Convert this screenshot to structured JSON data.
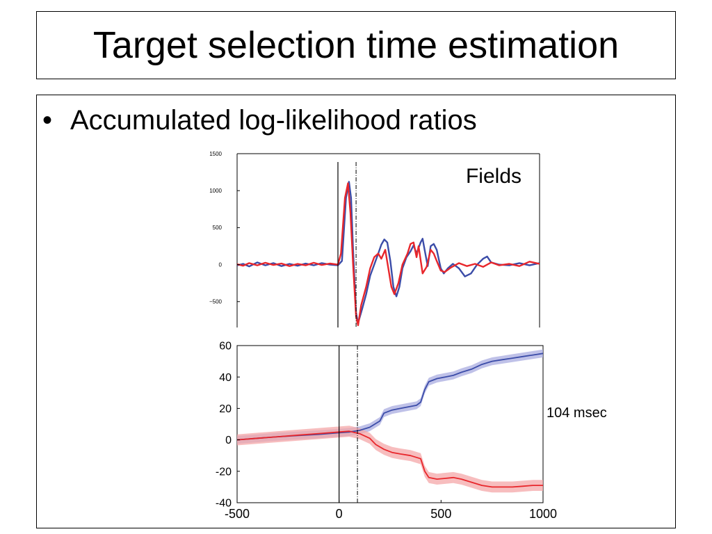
{
  "slide": {
    "title": "Target selection time estimation",
    "bullet": "Accumulated log-likelihood ratios",
    "annotation": "104 msec"
  },
  "colors": {
    "series_blue": "#3b4ca8",
    "series_red": "#e8262b",
    "band_blue": "#a9ace0",
    "band_red": "#f4a7a8"
  },
  "chart_data": [
    {
      "type": "line",
      "title": "Fields",
      "xlabel": "",
      "ylabel": "",
      "xlim": [
        -500,
        1000
      ],
      "ylim": [
        -850,
        1500
      ],
      "yticks": [
        1500,
        1000,
        500,
        0,
        -500
      ],
      "ytick_labels": [
        "1500",
        "1000",
        "500",
        "0",
        "−500"
      ],
      "vlines": [
        {
          "x": 0,
          "style": "solid"
        },
        {
          "x": 90,
          "style": "dashdot"
        }
      ],
      "series": [
        {
          "color": "#3b4ca8",
          "points": [
            [
              -500,
              -10
            ],
            [
              -470,
              10
            ],
            [
              -440,
              -25
            ],
            [
              -400,
              30
            ],
            [
              -360,
              -10
            ],
            [
              -320,
              20
            ],
            [
              -280,
              -20
            ],
            [
              -240,
              10
            ],
            [
              -200,
              -15
            ],
            [
              -160,
              15
            ],
            [
              -120,
              -10
            ],
            [
              -80,
              20
            ],
            [
              -40,
              0
            ],
            [
              0,
              -10
            ],
            [
              20,
              50
            ],
            [
              40,
              900
            ],
            [
              55,
              1120
            ],
            [
              65,
              900
            ],
            [
              75,
              200
            ],
            [
              90,
              -650
            ],
            [
              100,
              -790
            ],
            [
              120,
              -600
            ],
            [
              140,
              -400
            ],
            [
              160,
              -150
            ],
            [
              180,
              0
            ],
            [
              200,
              150
            ],
            [
              215,
              270
            ],
            [
              230,
              340
            ],
            [
              245,
              300
            ],
            [
              260,
              50
            ],
            [
              275,
              -300
            ],
            [
              290,
              -430
            ],
            [
              305,
              -300
            ],
            [
              320,
              -50
            ],
            [
              340,
              100
            ],
            [
              360,
              180
            ],
            [
              375,
              260
            ],
            [
              390,
              150
            ],
            [
              410,
              300
            ],
            [
              420,
              350
            ],
            [
              430,
              200
            ],
            [
              445,
              -20
            ],
            [
              460,
              250
            ],
            [
              475,
              280
            ],
            [
              490,
              200
            ],
            [
              510,
              -50
            ],
            [
              525,
              -120
            ],
            [
              545,
              -50
            ],
            [
              570,
              10
            ],
            [
              600,
              -50
            ],
            [
              630,
              -160
            ],
            [
              660,
              -120
            ],
            [
              690,
              0
            ],
            [
              720,
              80
            ],
            [
              740,
              110
            ],
            [
              760,
              30
            ],
            [
              800,
              0
            ],
            [
              850,
              -10
            ],
            [
              900,
              20
            ],
            [
              950,
              -10
            ],
            [
              1000,
              20
            ]
          ]
        },
        {
          "color": "#e8262b",
          "points": [
            [
              -500,
              5
            ],
            [
              -470,
              -15
            ],
            [
              -440,
              20
            ],
            [
              -400,
              -10
            ],
            [
              -360,
              25
            ],
            [
              -320,
              -5
            ],
            [
              -280,
              15
            ],
            [
              -240,
              -20
            ],
            [
              -200,
              10
            ],
            [
              -160,
              -10
            ],
            [
              -120,
              25
            ],
            [
              -80,
              -5
            ],
            [
              -40,
              15
            ],
            [
              0,
              0
            ],
            [
              15,
              150
            ],
            [
              35,
              900
            ],
            [
              50,
              1100
            ],
            [
              62,
              700
            ],
            [
              75,
              0
            ],
            [
              90,
              -700
            ],
            [
              100,
              -820
            ],
            [
              115,
              -550
            ],
            [
              140,
              -300
            ],
            [
              160,
              -50
            ],
            [
              180,
              100
            ],
            [
              200,
              150
            ],
            [
              215,
              80
            ],
            [
              235,
              200
            ],
            [
              250,
              -50
            ],
            [
              265,
              -300
            ],
            [
              280,
              -400
            ],
            [
              300,
              -250
            ],
            [
              320,
              0
            ],
            [
              345,
              150
            ],
            [
              360,
              280
            ],
            [
              375,
              300
            ],
            [
              390,
              100
            ],
            [
              400,
              250
            ],
            [
              420,
              -120
            ],
            [
              440,
              -30
            ],
            [
              460,
              200
            ],
            [
              475,
              150
            ],
            [
              490,
              50
            ],
            [
              510,
              -80
            ],
            [
              530,
              -100
            ],
            [
              560,
              -40
            ],
            [
              600,
              20
            ],
            [
              640,
              -20
            ],
            [
              680,
              10
            ],
            [
              720,
              -30
            ],
            [
              760,
              30
            ],
            [
              800,
              -10
            ],
            [
              850,
              10
            ],
            [
              900,
              -20
            ],
            [
              950,
              40
            ],
            [
              1000,
              10
            ]
          ]
        }
      ]
    },
    {
      "type": "line",
      "title": "",
      "xlabel": "",
      "ylabel": "",
      "xlim": [
        -500,
        1000
      ],
      "ylim": [
        -40,
        60
      ],
      "xticks": [
        -500,
        0,
        500,
        1000
      ],
      "xtick_labels": [
        "-500",
        "0",
        "500",
        "1000"
      ],
      "yticks": [
        60,
        40,
        20,
        0,
        -20,
        -40
      ],
      "ytick_labels": [
        "60",
        "40",
        "20",
        "0",
        "-20",
        "-40"
      ],
      "vlines": [
        {
          "x": 0,
          "style": "solid"
        },
        {
          "x": 90,
          "style": "dashdot"
        }
      ],
      "series": [
        {
          "color": "#3b4ca8",
          "band": 2.5,
          "points": [
            [
              -500,
              0
            ],
            [
              -400,
              1
            ],
            [
              -300,
              2
            ],
            [
              -200,
              2.8
            ],
            [
              -100,
              3.5
            ],
            [
              0,
              4.5
            ],
            [
              50,
              5
            ],
            [
              100,
              6
            ],
            [
              150,
              8
            ],
            [
              200,
              12
            ],
            [
              220,
              17
            ],
            [
              260,
              19
            ],
            [
              300,
              20
            ],
            [
              340,
              21
            ],
            [
              380,
              22
            ],
            [
              400,
              24
            ],
            [
              420,
              32
            ],
            [
              440,
              37
            ],
            [
              480,
              39
            ],
            [
              520,
              40
            ],
            [
              560,
              41
            ],
            [
              600,
              43
            ],
            [
              650,
              45
            ],
            [
              700,
              48
            ],
            [
              750,
              50
            ],
            [
              800,
              51
            ],
            [
              850,
              52
            ],
            [
              900,
              53
            ],
            [
              950,
              54
            ],
            [
              1000,
              55
            ]
          ]
        },
        {
          "color": "#e8262b",
          "band": 3.5,
          "points": [
            [
              -500,
              0
            ],
            [
              -400,
              1
            ],
            [
              -300,
              2
            ],
            [
              -200,
              3
            ],
            [
              -100,
              4
            ],
            [
              0,
              5
            ],
            [
              50,
              5.5
            ],
            [
              100,
              4
            ],
            [
              150,
              1
            ],
            [
              180,
              -3
            ],
            [
              220,
              -6
            ],
            [
              260,
              -8
            ],
            [
              300,
              -9
            ],
            [
              350,
              -10
            ],
            [
              400,
              -12
            ],
            [
              420,
              -20
            ],
            [
              440,
              -24
            ],
            [
              480,
              -25
            ],
            [
              520,
              -24.5
            ],
            [
              560,
              -24
            ],
            [
              600,
              -25
            ],
            [
              650,
              -27
            ],
            [
              700,
              -29
            ],
            [
              750,
              -30
            ],
            [
              800,
              -30
            ],
            [
              850,
              -30
            ],
            [
              900,
              -29.5
            ],
            [
              950,
              -29
            ],
            [
              1000,
              -29
            ]
          ]
        }
      ]
    }
  ]
}
